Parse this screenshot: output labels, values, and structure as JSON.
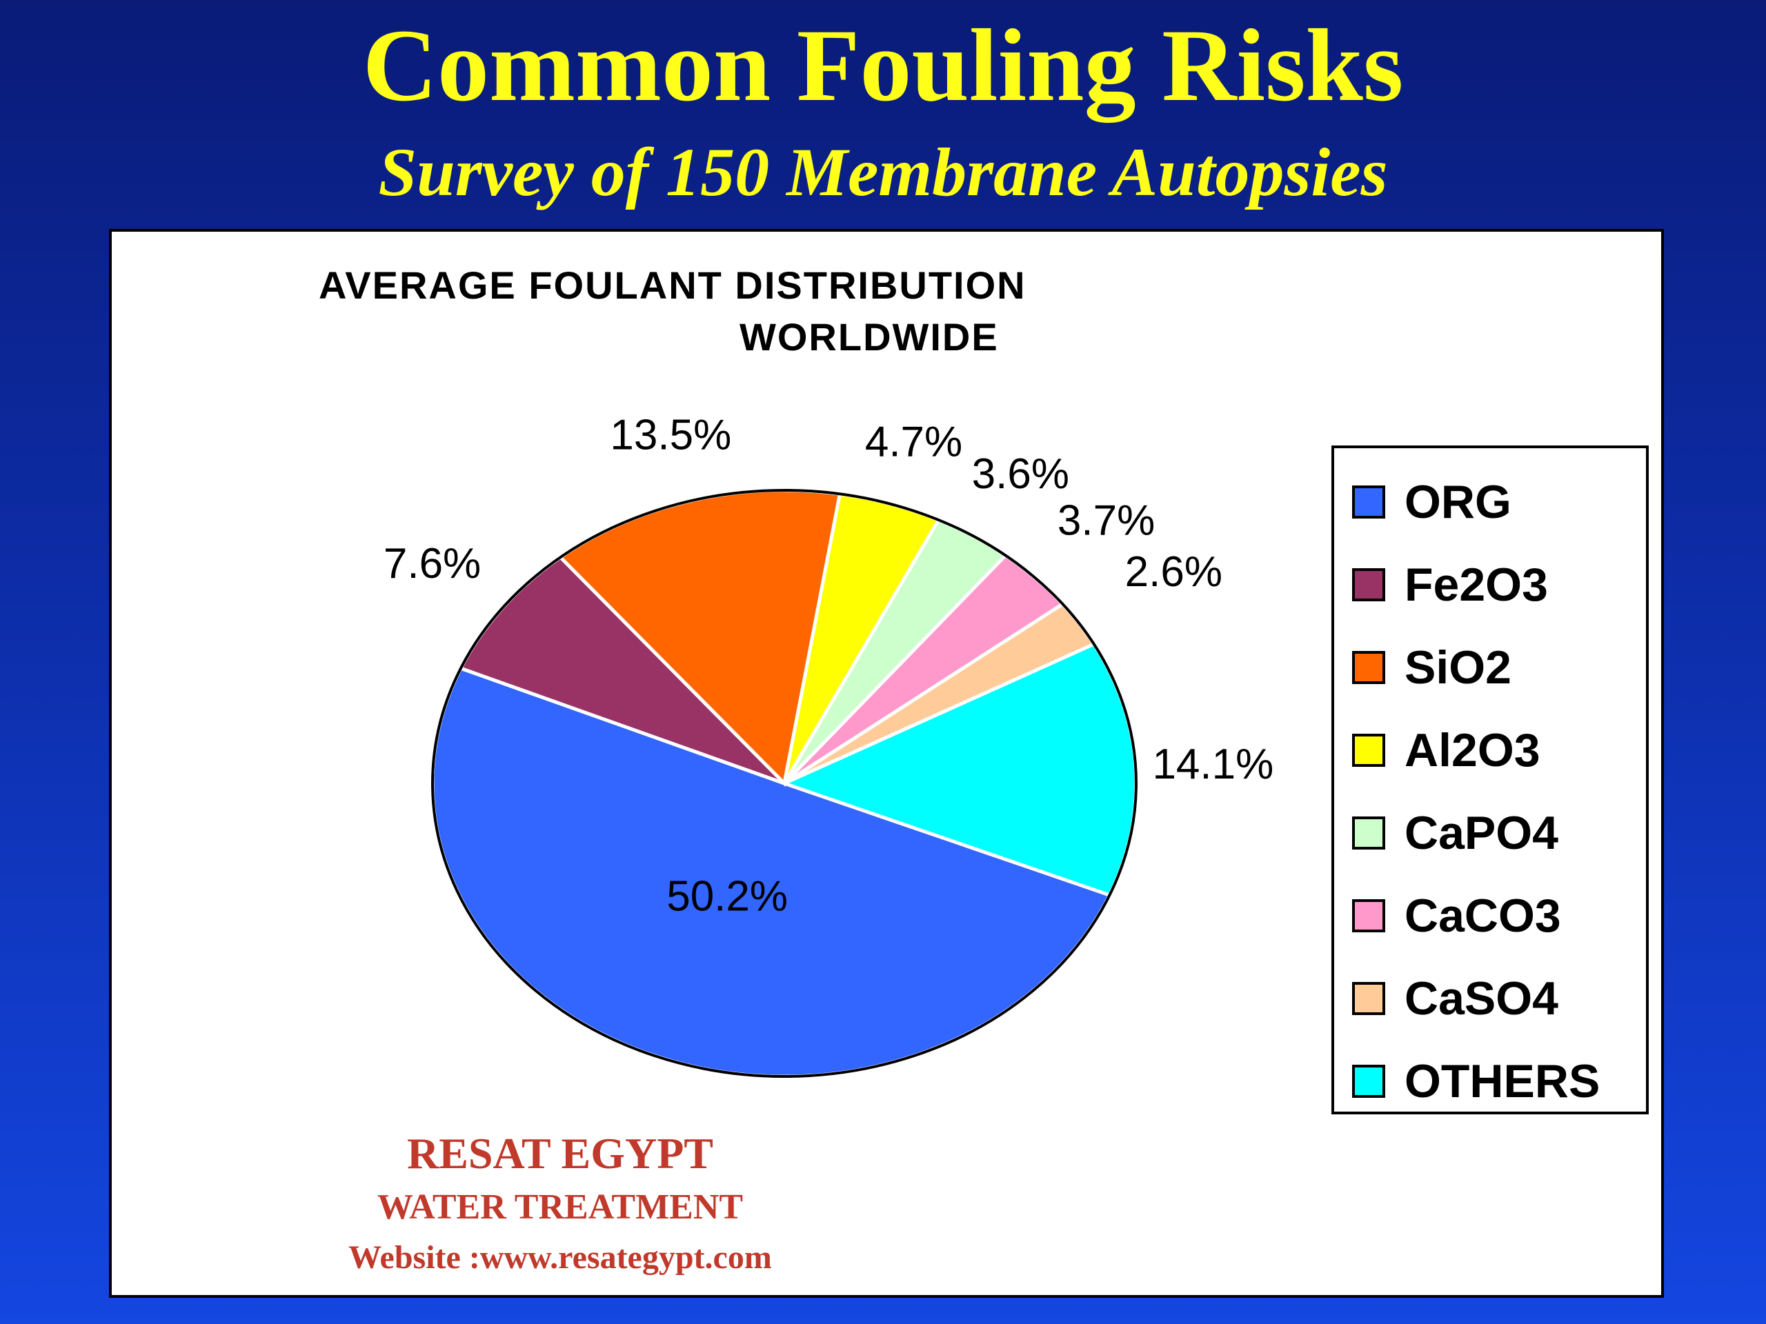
{
  "slide": {
    "title": "Common Fouling Risks",
    "subtitle": "Survey of 150 Membrane Autopsies"
  },
  "watermark": {
    "line1": "RESAT EGYPT",
    "line2": "WATER TREATMENT",
    "line3": "Website :www.resategypt.com"
  },
  "chart_data": {
    "type": "pie",
    "title_line1": "AVERAGE FOULANT DISTRIBUTION",
    "title_line2": "WORLDWIDE",
    "legend_position": "right",
    "slices": [
      {
        "name": "ORG",
        "value": 50.2,
        "label": "50.2%",
        "color": "#3366ff"
      },
      {
        "name": "Fe2O3",
        "value": 7.6,
        "label": "7.6%",
        "color": "#993366"
      },
      {
        "name": "SiO2",
        "value": 13.5,
        "label": "13.5%",
        "color": "#ff6600"
      },
      {
        "name": "Al2O3",
        "value": 4.7,
        "label": "4.7%",
        "color": "#ffff00"
      },
      {
        "name": "CaPO4",
        "value": 3.6,
        "label": "3.6%",
        "color": "#ccffcc"
      },
      {
        "name": "CaCO3",
        "value": 3.7,
        "label": "3.7%",
        "color": "#ff99cc"
      },
      {
        "name": "CaSO4",
        "value": 2.6,
        "label": "2.6%",
        "color": "#ffcc99"
      },
      {
        "name": "OTHERS",
        "value": 14.1,
        "label": "14.1%",
        "color": "#00ffff"
      }
    ]
  }
}
